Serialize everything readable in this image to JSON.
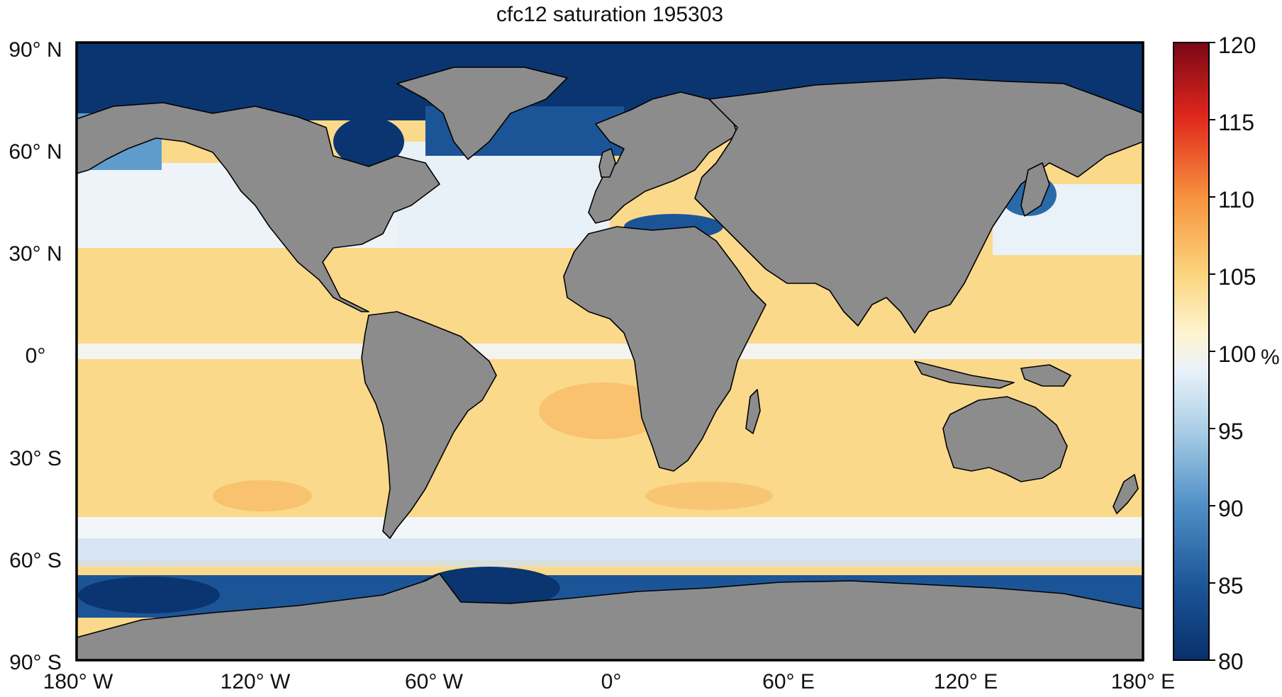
{
  "title": "cfc12 saturation 195303",
  "axes": {
    "lat_labels": [
      "90° N",
      "60° N",
      "30° N",
      "0°",
      "30° S",
      "60° S",
      "90° S"
    ],
    "lon_labels": [
      "180° W",
      "120° W",
      "60° W",
      "0°",
      "60° E",
      "120° E",
      "180° E"
    ]
  },
  "colorbar": {
    "unit": "%",
    "tick_labels": [
      "120",
      "115",
      "110",
      "105",
      "100",
      "95",
      "90",
      "85",
      "80"
    ],
    "range": [
      80,
      120
    ],
    "colors": {
      "deep_blue": "#08306b",
      "mid_blue": "#2b6aa8",
      "light_blue": "#9ecae1",
      "white": "#f7fbff",
      "light_yellow": "#fde9a8",
      "yellow_orange": "#fbc86a",
      "orange": "#f58a3a",
      "red": "#d7191c",
      "dark_red": "#7a0716"
    }
  },
  "map_colors": {
    "land": "#8c8c8c",
    "coastline": "#000000",
    "ocean_warm": "#fbd98a",
    "ocean_neutral": "#f2f6fb",
    "ocean_cold": "#0b3570"
  }
}
